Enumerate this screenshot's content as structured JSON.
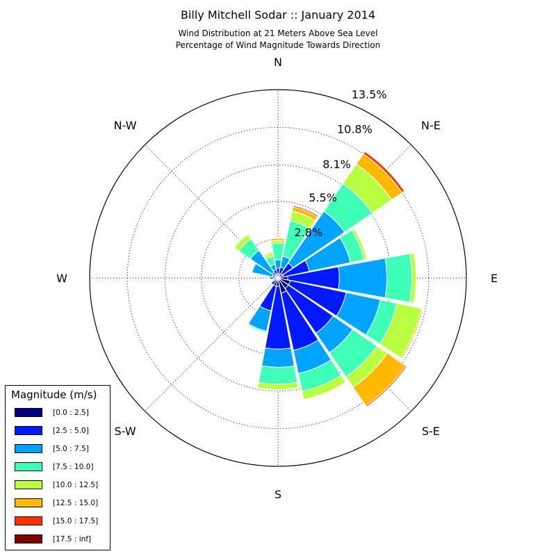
{
  "title": "Billy Mitchell Sodar :: January 2014",
  "subtitle_line1": "Wind Distribution at 21 Meters Above Sea Level",
  "subtitle_line2": "Percentage of Wind Magnitude Towards Direction",
  "legend": {
    "title": "Magnitude (m/s)",
    "items": [
      {
        "label": "[0.0 : 2.5]",
        "color": "#000080"
      },
      {
        "label": "[2.5 : 5.0]",
        "color": "#0019ff"
      },
      {
        "label": "[5.0 : 7.5]",
        "color": "#00a4ff"
      },
      {
        "label": "[7.5 : 10.0]",
        "color": "#40ffb7"
      },
      {
        "label": "[10.0 : 12.5]",
        "color": "#b7ff40"
      },
      {
        "label": "[12.5 : 15.0]",
        "color": "#ffb900"
      },
      {
        "label": "[15.0 : 17.5]",
        "color": "#ff3000"
      },
      {
        "label": "[17.5 : inf]",
        "color": "#800000"
      }
    ]
  },
  "chart_data": {
    "type": "windrose",
    "title": "Billy Mitchell Sodar :: January 2014",
    "radial_tick_labels": [
      "2.8%",
      "5.5%",
      "8.1%",
      "10.8%",
      "13.5%"
    ],
    "radial_ticks": [
      2.8,
      5.5,
      8.1,
      10.8,
      13.5
    ],
    "rmax": 13.5,
    "grid": true,
    "direction_labels": [
      "N",
      "N-E",
      "E",
      "S-E",
      "S",
      "S-W",
      "W",
      "N-W"
    ],
    "direction_label_angles": [
      0,
      45,
      90,
      135,
      180,
      225,
      270,
      315
    ],
    "bin_labels": [
      "[0.0 : 2.5]",
      "[2.5 : 5.0]",
      "[5.0 : 7.5]",
      "[7.5 : 10.0]",
      "[10.0 : 12.5]",
      "[12.5 : 15.0]",
      "[15.0 : 17.5]",
      "[17.5 : inf]"
    ],
    "directions": [
      0,
      22.5,
      45,
      67.5,
      90,
      112.5,
      135,
      157.5,
      180,
      202.5,
      225,
      247.5,
      270,
      292.5,
      315,
      337.5
    ],
    "cumulative": [
      [
        0.3,
        0.7,
        1.3,
        2.5,
        2.7,
        2.85,
        2.9,
        2.9
      ],
      [
        0.3,
        0.8,
        1.6,
        4.2,
        4.9,
        5.2,
        5.3,
        5.3
      ],
      [
        0.4,
        1.3,
        5.8,
        8.2,
        9.9,
        10.8,
        11.0,
        11.0
      ],
      [
        0.4,
        2.3,
        5.3,
        6.3,
        6.5,
        6.5,
        6.5,
        6.5
      ],
      [
        0.7,
        4.4,
        7.8,
        9.6,
        9.9,
        9.9,
        9.9,
        9.9
      ],
      [
        0.9,
        5.0,
        7.5,
        8.7,
        10.5,
        10.6,
        10.6,
        10.6
      ],
      [
        0.9,
        4.8,
        6.5,
        8.6,
        9.5,
        11.1,
        11.2,
        11.2
      ],
      [
        1.1,
        5.3,
        7.0,
        8.3,
        8.9,
        8.9,
        8.9,
        8.9
      ],
      [
        0.6,
        5.1,
        6.4,
        7.6,
        8.0,
        8.0,
        8.0,
        8.0
      ],
      [
        0.6,
        2.4,
        3.9,
        4.0,
        4.0,
        4.0,
        4.0,
        4.0
      ],
      [
        0.2,
        0.6,
        0.6,
        0.6,
        0.6,
        0.6,
        0.6,
        0.6
      ],
      [
        0.1,
        0.3,
        0.3,
        0.3,
        0.3,
        0.3,
        0.3,
        0.3
      ],
      [
        0.1,
        0.3,
        0.6,
        0.6,
        0.6,
        0.6,
        0.6,
        0.6
      ],
      [
        0.2,
        0.4,
        1.9,
        1.9,
        1.9,
        1.9,
        1.9,
        1.9
      ],
      [
        0.3,
        0.5,
        2.4,
        3.4,
        3.8,
        3.8,
        3.8,
        3.8
      ],
      [
        0.3,
        0.6,
        1.0,
        1.6,
        1.8,
        1.9,
        1.9,
        1.9
      ]
    ]
  }
}
